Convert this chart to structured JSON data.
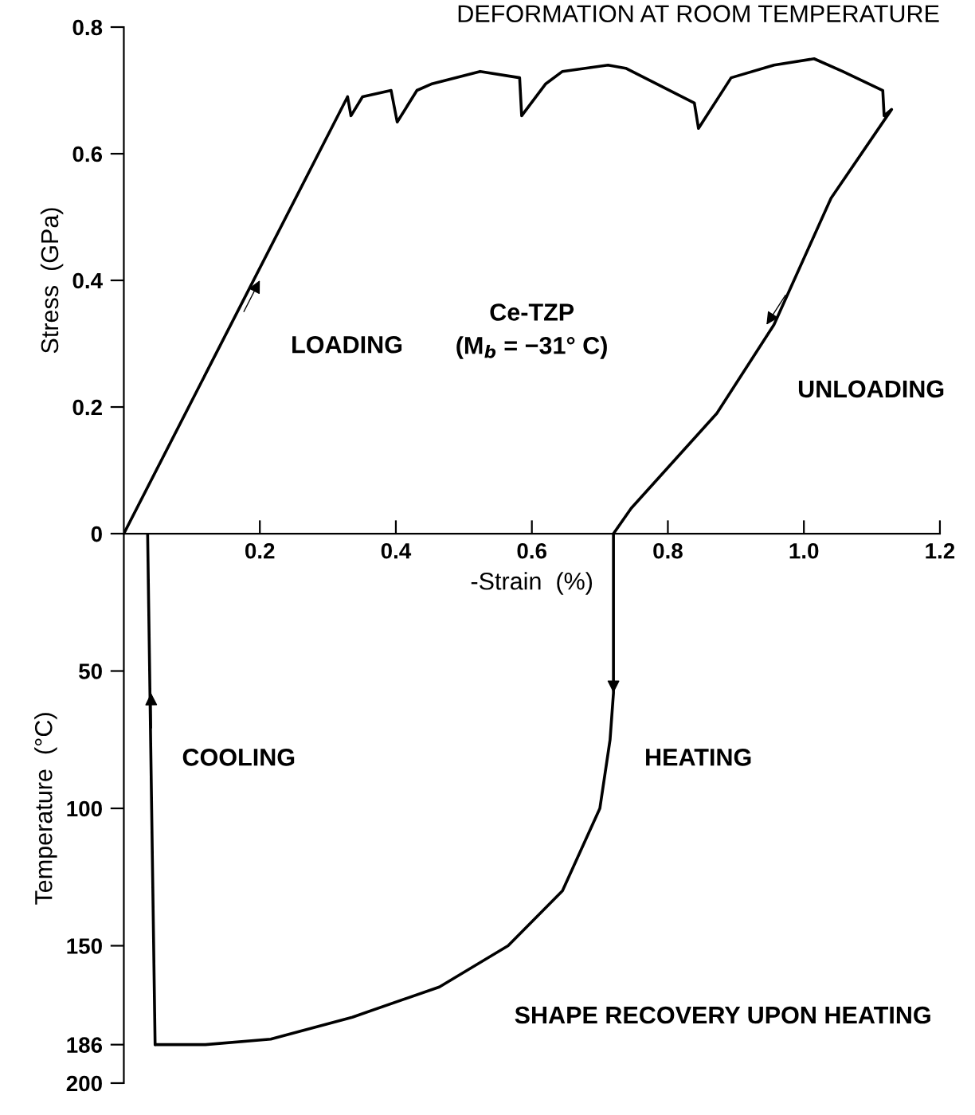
{
  "chart_data": [
    {
      "type": "line",
      "title": "DEFORMATION AT ROOM TEMPERATURE",
      "xlabel": "-Strain  (%)",
      "ylabel": "Stress  (GPa)",
      "xlim": [
        0,
        1.2
      ],
      "xticks": [
        0.2,
        0.4,
        0.6,
        0.8,
        {
          "value": 1.0,
          "label": "1.0"
        },
        1.2
      ],
      "ylim": [
        0,
        0.8
      ],
      "yticks": [
        0,
        0.2,
        0.4,
        0.6,
        0.8
      ],
      "grid": false,
      "legend": false,
      "marker": "none",
      "line_style": "solid",
      "series": [
        {
          "color": "#000000",
          "x": [
            0,
            0.329,
            0.334,
            0.351,
            0.393,
            0.402,
            0.431,
            0.452,
            0.524,
            0.582,
            0.585,
            0.62,
            0.645,
            0.712,
            0.738,
            0.839,
            0.845,
            0.893,
            0.956,
            1.015,
            1.057,
            1.116,
            1.118,
            1.129,
            1.04,
            0.956,
            0.872,
            0.788,
            0.746,
            0.72
          ],
          "values": [
            0,
            0.69,
            0.66,
            0.69,
            0.7,
            0.65,
            0.7,
            0.71,
            0.73,
            0.72,
            0.66,
            0.71,
            0.73,
            0.74,
            0.735,
            0.68,
            0.64,
            0.72,
            0.74,
            0.75,
            0.73,
            0.7,
            0.66,
            0.67,
            0.53,
            0.33,
            0.19,
            0.09,
            0.04,
            0
          ]
        }
      ],
      "annotations": [
        {
          "text": "LOADING",
          "x": 0.2,
          "y": 0.4
        },
        {
          "text": "UNLOADING",
          "x": 0.945,
          "y": 0.33
        },
        "Ce-TZP\n(M$_{b}$ = −31° C)"
      ]
    },
    {
      "type": "line",
      "ylabel": "Temperature  (°C)",
      "xlim": [
        0,
        1.2
      ],
      "ylim": [
        200,
        0
      ],
      "yticks": [
        50,
        100,
        150,
        186,
        200
      ],
      "tick_labels": "y",
      "grid": false,
      "legend": false,
      "marker": "none",
      "line_style": "solid",
      "series": [
        {
          "color": "#000000",
          "x": [
            0.046,
            0.035
          ],
          "values": [
            186,
            0
          ]
        },
        {
          "color": "#000000",
          "x": [
            0.72,
            0.72,
            0.715,
            0.7,
            0.645,
            0.565,
            0.464,
            0.336,
            0.216,
            0.12,
            0.046
          ],
          "values": [
            0,
            58,
            75,
            100,
            130,
            150,
            165,
            176,
            184,
            186,
            186
          ]
        }
      ],
      "annotations": [
        {
          "text": "COOLING",
          "x": 0.04,
          "y": 58
        },
        {
          "text": "HEATING",
          "x": 0.72,
          "y": 58
        },
        "SHAPE RECOVERY UPON HEATING"
      ]
    }
  ]
}
